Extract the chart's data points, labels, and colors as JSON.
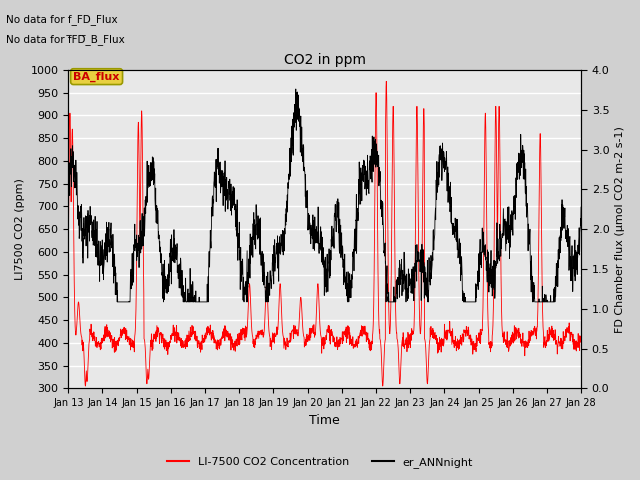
{
  "title": "CO2 in ppm",
  "xlabel": "Time",
  "ylabel_left": "LI7500 CO2 (ppm)",
  "ylabel_right": "FD Chamber flux (μmol CO2 m-2 s-1)",
  "ylim_left": [
    300,
    1000
  ],
  "ylim_right": [
    0.0,
    4.0
  ],
  "fig_bg_color": "#d0d0d0",
  "plot_bg_color": "#e8e8e8",
  "grid_color": "white",
  "legend_entries": [
    "LI-7500 CO2 Concentration",
    "er_ANNnight"
  ],
  "text_annotations": [
    "No data for f_FD_Flux",
    "No data for f̅FD̅_B_Flux"
  ],
  "ba_flux_label": "BA_flux",
  "ba_flux_color": "#cc0000",
  "ba_flux_bg": "#e8d040",
  "seed": 7
}
